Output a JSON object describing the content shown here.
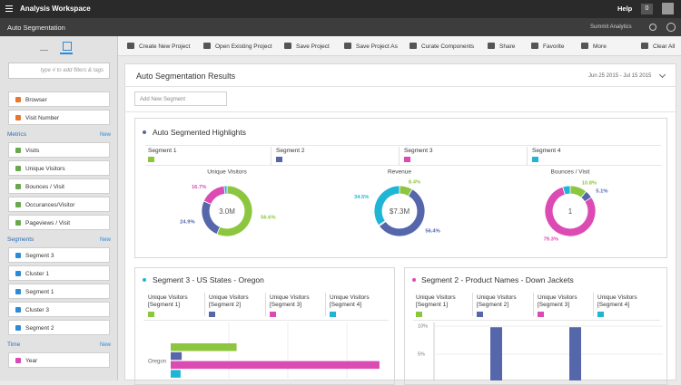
{
  "header": {
    "title": "Analysis Workspace",
    "help": "Help",
    "notifications": "0"
  },
  "project_bar": {
    "title": "Auto Segmentation",
    "company": "Summit Analytics"
  },
  "sidebar": {
    "search_placeholder": "type # to add filters & tags",
    "dimensions": [
      "Browser",
      "Visit Number"
    ],
    "sections": [
      {
        "title": "Metrics",
        "action": "New",
        "items": [
          "Visits",
          "Unique Visitors",
          "Bounces / Visit",
          "Occurances/Visitor",
          "Pageviews / Visit"
        ]
      },
      {
        "title": "Segments",
        "action": "New",
        "items": [
          "Segment 3",
          "Cluster 1",
          "Segment 1",
          "Cluster 3",
          "Segment 2"
        ]
      },
      {
        "title": "Time",
        "action": "New",
        "items": [
          "Year"
        ]
      }
    ]
  },
  "toolbar": [
    "Create New Project",
    "Open Existing Project",
    "Save Project",
    "Save Project As",
    "Curate Components",
    "Share",
    "Favorite",
    "More",
    "Clear All"
  ],
  "panel": {
    "title": "Auto Segmentation Results",
    "date_range": "Jun 25 2015 - Jul 15 2015",
    "add_segment_placeholder": "Add New Segment"
  },
  "highlights": {
    "title": "Auto Segmented Highlights",
    "segments": [
      {
        "name": "Segment 1",
        "color": "#8cc63f"
      },
      {
        "name": "Segment 2",
        "color": "#5567aa"
      },
      {
        "name": "Segment 3",
        "color": "#dc4bb4"
      },
      {
        "name": "Segment 4",
        "color": "#1fb6d6"
      }
    ]
  },
  "chart_data": [
    {
      "type": "pie",
      "title": "Unique Visitors",
      "center_label": "3.0M",
      "values": [
        56.6,
        24.9,
        16.7,
        1.8
      ],
      "value_labels": [
        "56.6%",
        "24.9%",
        "16.7%",
        null
      ],
      "colors": [
        "#8cc63f",
        "#5567aa",
        "#dc4bb4",
        "#1fb6d6"
      ]
    },
    {
      "type": "pie",
      "title": "Revenue",
      "center_label": "$7.3M",
      "values": [
        8.4,
        56.4,
        0.7,
        34.5
      ],
      "value_labels": [
        "8.4%",
        "56.4%",
        null,
        "34.5%"
      ],
      "colors": [
        "#8cc63f",
        "#5567aa",
        "#dc4bb4",
        "#1fb6d6"
      ]
    },
    {
      "type": "pie",
      "title": "Bounces / Visit",
      "center_label": "1",
      "values": [
        10.8,
        5.1,
        79.3,
        4.8
      ],
      "value_labels": [
        "10.8%",
        "5.1%",
        "79.3%",
        null
      ],
      "colors": [
        "#8cc63f",
        "#5567aa",
        "#dc4bb4",
        "#1fb6d6"
      ]
    },
    {
      "type": "hbar",
      "title": "Segment 3  - US States - Oregon",
      "categories": [
        "Oregon"
      ],
      "xlim": [
        0,
        100
      ],
      "series": [
        {
          "name": "Unique Visitors [Segment 1]",
          "color": "#8cc63f",
          "values": [
            30
          ]
        },
        {
          "name": "Unique Visitors [Segment 2]",
          "color": "#5567aa",
          "values": [
            5
          ]
        },
        {
          "name": "Unique Visitors [Segment 3]",
          "color": "#dc4bb4",
          "values": [
            95
          ]
        },
        {
          "name": "Unique Visitors [Segment 4]",
          "color": "#1fb6d6",
          "values": [
            4.5
          ]
        }
      ]
    },
    {
      "type": "bar",
      "title": "Segment 2 - Product Names - Down Jackets",
      "categories": [
        null,
        null
      ],
      "ylim": [
        0,
        10.4
      ],
      "yticks": [
        {
          "value": 5,
          "label": "5%"
        },
        {
          "value": 10,
          "label": "10%"
        }
      ],
      "grid": true,
      "series": [
        {
          "name": "Unique Visitors [Segment 1]",
          "color": "#8cc63f",
          "values": [
            0.3,
            0.3
          ]
        },
        {
          "name": "Unique Visitors [Segment 2]",
          "color": "#5567aa",
          "values": [
            9.8,
            9.8
          ]
        },
        {
          "name": "Unique Visitors [Segment 3]",
          "color": "#dc4bb4",
          "values": [
            0,
            0
          ]
        },
        {
          "name": "Unique Visitors [Segment 4]",
          "color": "#1fb6d6",
          "values": [
            0,
            0
          ]
        }
      ]
    }
  ]
}
